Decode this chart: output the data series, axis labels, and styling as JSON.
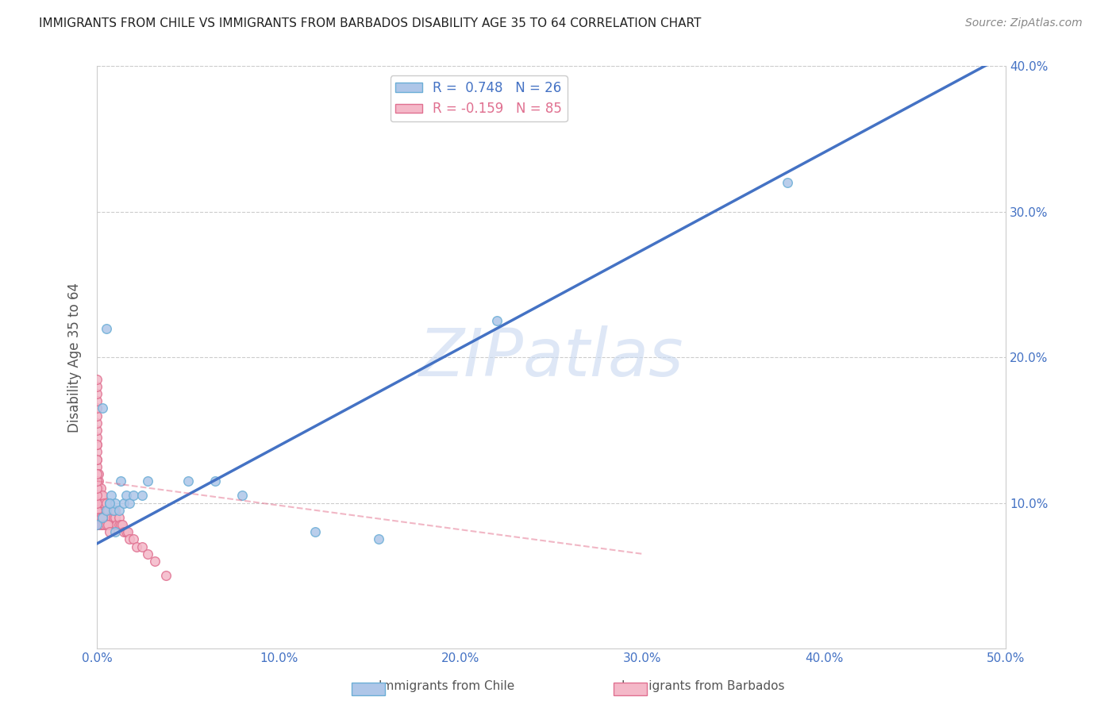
{
  "title": "IMMIGRANTS FROM CHILE VS IMMIGRANTS FROM BARBADOS DISABILITY AGE 35 TO 64 CORRELATION CHART",
  "source": "Source: ZipAtlas.com",
  "ylabel": "Disability Age 35 to 64",
  "xlim": [
    0.0,
    0.5
  ],
  "ylim": [
    0.0,
    0.4
  ],
  "xtick_labels": [
    "0.0%",
    "10.0%",
    "20.0%",
    "30.0%",
    "40.0%",
    "50.0%"
  ],
  "xtick_vals": [
    0.0,
    0.1,
    0.2,
    0.3,
    0.4,
    0.5
  ],
  "right_ytick_labels": [
    "10.0%",
    "20.0%",
    "30.0%",
    "40.0%"
  ],
  "right_ytick_vals": [
    0.1,
    0.2,
    0.3,
    0.4
  ],
  "chile_color": "#aec6e8",
  "chile_edge_color": "#6baed6",
  "barbados_color": "#f4b8c8",
  "barbados_edge_color": "#e07090",
  "chile_R": 0.748,
  "chile_N": 26,
  "barbados_R": -0.159,
  "barbados_N": 85,
  "chile_line_color": "#4472c4",
  "barbados_line_color": "#e06080",
  "watermark": "ZIPatlas",
  "watermark_color": "#c8d8f0",
  "background_color": "#ffffff",
  "grid_color": "#cccccc",
  "scatter_size": 70,
  "chile_line_x": [
    0.0,
    0.5
  ],
  "chile_line_y": [
    0.072,
    0.408
  ],
  "barbados_line_x": [
    0.0,
    0.3
  ],
  "barbados_line_y": [
    0.115,
    0.065
  ],
  "chile_scatter_x": [
    0.0,
    0.003,
    0.005,
    0.007,
    0.008,
    0.009,
    0.01,
    0.012,
    0.013,
    0.015,
    0.016,
    0.018,
    0.02,
    0.025,
    0.028,
    0.05,
    0.065,
    0.08,
    0.12,
    0.155,
    0.22,
    0.38,
    0.003,
    0.005,
    0.007,
    0.01
  ],
  "chile_scatter_y": [
    0.085,
    0.09,
    0.095,
    0.1,
    0.105,
    0.095,
    0.1,
    0.095,
    0.115,
    0.1,
    0.105,
    0.1,
    0.105,
    0.105,
    0.115,
    0.115,
    0.115,
    0.105,
    0.08,
    0.075,
    0.225,
    0.32,
    0.165,
    0.22,
    0.1,
    0.08
  ],
  "barbados_scatter_x": [
    0.0,
    0.0,
    0.0,
    0.0,
    0.0,
    0.0,
    0.0,
    0.0,
    0.0,
    0.0,
    0.0,
    0.0,
    0.0,
    0.0,
    0.0,
    0.0,
    0.0,
    0.0,
    0.0,
    0.0,
    0.001,
    0.001,
    0.001,
    0.001,
    0.001,
    0.002,
    0.002,
    0.002,
    0.002,
    0.003,
    0.003,
    0.003,
    0.003,
    0.004,
    0.004,
    0.004,
    0.005,
    0.005,
    0.005,
    0.006,
    0.006,
    0.007,
    0.007,
    0.008,
    0.008,
    0.009,
    0.009,
    0.01,
    0.01,
    0.01,
    0.011,
    0.012,
    0.012,
    0.013,
    0.014,
    0.015,
    0.016,
    0.017,
    0.018,
    0.02,
    0.022,
    0.025,
    0.028,
    0.032,
    0.038,
    0.0,
    0.0,
    0.0,
    0.0,
    0.0,
    0.0,
    0.0,
    0.0,
    0.0,
    0.0,
    0.001,
    0.001,
    0.002,
    0.002,
    0.003,
    0.003,
    0.004,
    0.005,
    0.006,
    0.007
  ],
  "barbados_scatter_y": [
    0.09,
    0.095,
    0.1,
    0.105,
    0.11,
    0.115,
    0.12,
    0.125,
    0.13,
    0.135,
    0.14,
    0.145,
    0.15,
    0.155,
    0.16,
    0.165,
    0.17,
    0.175,
    0.18,
    0.185,
    0.09,
    0.1,
    0.11,
    0.115,
    0.12,
    0.09,
    0.1,
    0.105,
    0.11,
    0.09,
    0.095,
    0.1,
    0.105,
    0.09,
    0.095,
    0.1,
    0.09,
    0.095,
    0.1,
    0.09,
    0.095,
    0.085,
    0.09,
    0.085,
    0.09,
    0.085,
    0.09,
    0.085,
    0.09,
    0.095,
    0.085,
    0.085,
    0.09,
    0.085,
    0.085,
    0.08,
    0.08,
    0.08,
    0.075,
    0.075,
    0.07,
    0.07,
    0.065,
    0.06,
    0.05,
    0.085,
    0.09,
    0.095,
    0.1,
    0.105,
    0.11,
    0.115,
    0.12,
    0.13,
    0.14,
    0.085,
    0.09,
    0.085,
    0.09,
    0.085,
    0.09,
    0.085,
    0.085,
    0.085,
    0.08
  ]
}
